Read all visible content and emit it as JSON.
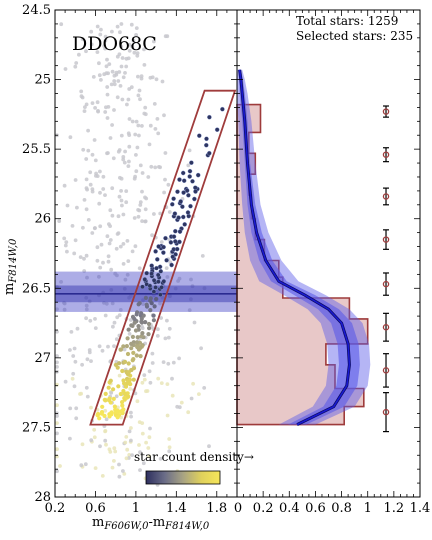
{
  "chart_data": {
    "type": "scatter",
    "title": "DDO68C",
    "stats": {
      "total_label": "Total stars: 1259",
      "selected_label": "Selected stars: 235",
      "total": 1259,
      "selected": 235
    },
    "left_panel": {
      "xlabel_html": "m<tspan font-style='italic' font-size='10'>F606W</tspan>",
      "xlabel": "mF606W,0-mF814W,0",
      "ylabel": "mF814W,0",
      "xlim": [
        0.2,
        2.0
      ],
      "ylim": [
        28.0,
        24.5
      ],
      "xticks": [
        "0.2",
        "0.6",
        "1",
        "1.4",
        "1.8"
      ],
      "xtick_values": [
        0.2,
        0.6,
        1.0,
        1.4,
        1.8
      ],
      "yticks": [
        "24.5",
        "25",
        "25.5",
        "26",
        "26.5",
        "27",
        "27.5",
        "28"
      ],
      "ytick_values": [
        24.5,
        25.0,
        25.5,
        26.0,
        26.5,
        27.0,
        27.5,
        28.0
      ],
      "selection_box": [
        [
          0.55,
          27.48
        ],
        [
          0.87,
          27.48
        ],
        [
          1.98,
          25.08
        ],
        [
          1.68,
          25.08
        ]
      ],
      "trgb": {
        "mag": 26.54,
        "band_outer": [
          26.38,
          26.67
        ],
        "band_inner": [
          26.48,
          26.6
        ]
      },
      "colorbar_label": "star count density→",
      "colormap": [
        "#2e2f5e",
        "#6a6c87",
        "#a8a383",
        "#e0d15c",
        "#f6e65a"
      ],
      "background_color": "#c8c8ce"
    },
    "right_panel": {
      "xlim": [
        0,
        1.4
      ],
      "xticks": [
        "0",
        "0.2",
        "0.4",
        "0.6",
        "0.8",
        "1",
        "1.2",
        "1.4"
      ],
      "xtick_values": [
        0,
        0.2,
        0.4,
        0.6,
        0.8,
        1.0,
        1.2,
        1.4
      ],
      "histogram": {
        "edges": [
          25.18,
          25.38,
          25.53,
          25.68,
          25.83,
          26.0,
          26.15,
          26.3,
          26.42,
          26.57,
          26.72,
          26.9,
          27.05,
          27.22,
          27.35,
          27.48
        ],
        "values": [
          0.18,
          0.09,
          0.14,
          0.09,
          0.11,
          0.14,
          0.21,
          0.32,
          0.35,
          0.86,
          1.0,
          0.68,
          0.75,
          0.97,
          0.82
        ],
        "fill": "#e8c8c8",
        "edge": "#9e3b3b"
      },
      "lf_curve": {
        "mags": [
          24.93,
          25.0,
          25.1,
          25.3,
          25.6,
          25.9,
          26.1,
          26.3,
          26.45,
          26.55,
          26.65,
          26.75,
          26.9,
          27.05,
          27.2,
          27.35,
          27.48
        ],
        "values": [
          0.02,
          0.03,
          0.04,
          0.06,
          0.08,
          0.11,
          0.15,
          0.22,
          0.32,
          0.52,
          0.7,
          0.8,
          0.85,
          0.86,
          0.84,
          0.74,
          0.46
        ],
        "inner_width": [
          0.01,
          0.015,
          0.02,
          0.02,
          0.02,
          0.03,
          0.04,
          0.05,
          0.06,
          0.08,
          0.08,
          0.08,
          0.08,
          0.08,
          0.08,
          0.08,
          0.07
        ],
        "outer_width": [
          0.02,
          0.03,
          0.04,
          0.05,
          0.06,
          0.07,
          0.09,
          0.12,
          0.15,
          0.16,
          0.16,
          0.16,
          0.16,
          0.16,
          0.16,
          0.16,
          0.14
        ],
        "line_color": "#1a1ad0",
        "band_color": "#5a5ae8"
      },
      "error_bars": {
        "x": 1.14,
        "mags": [
          25.23,
          25.54,
          25.84,
          26.15,
          26.47,
          26.78,
          27.09,
          27.39
        ],
        "errors": [
          0.04,
          0.05,
          0.06,
          0.07,
          0.08,
          0.1,
          0.12,
          0.14
        ],
        "marker_color": "#9e3b3b"
      }
    }
  }
}
